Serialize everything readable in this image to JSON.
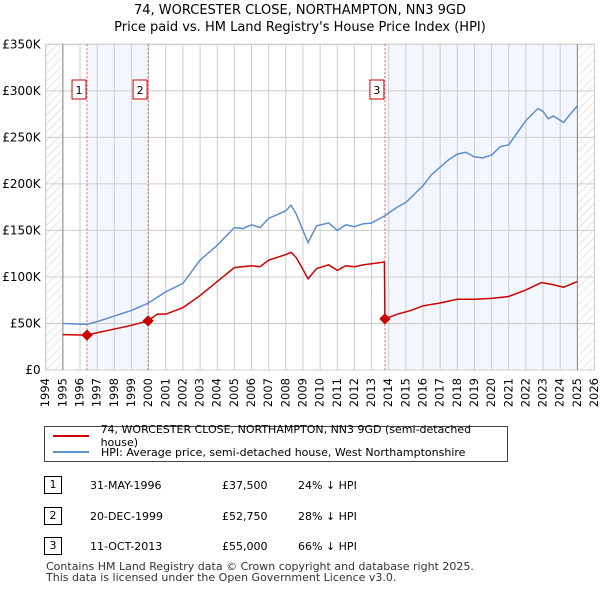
{
  "chart_data": {
    "type": "line",
    "title": "74, WORCESTER CLOSE, NORTHAMPTON, NN3 9GD",
    "subtitle": "Price paid vs. HM Land Registry's House Price Index (HPI)",
    "xlim": [
      1994,
      2026
    ],
    "ylim": [
      0,
      350000
    ],
    "x_ticks": [
      "1994",
      "1995",
      "1996",
      "1997",
      "1998",
      "1999",
      "2000",
      "2001",
      "2002",
      "2003",
      "2004",
      "2005",
      "2006",
      "2007",
      "2008",
      "2009",
      "2010",
      "2011",
      "2012",
      "2013",
      "2014",
      "2015",
      "2016",
      "2017",
      "2018",
      "2019",
      "2020",
      "2021",
      "2022",
      "2023",
      "2024",
      "2025",
      "2026"
    ],
    "y_ticks": [
      {
        "v": 0,
        "l": "£0"
      },
      {
        "v": 50000,
        "l": "£50K"
      },
      {
        "v": 100000,
        "l": "£100K"
      },
      {
        "v": 150000,
        "l": "£150K"
      },
      {
        "v": 200000,
        "l": "£200K"
      },
      {
        "v": 250000,
        "l": "£250K"
      },
      {
        "v": 300000,
        "l": "£300K"
      },
      {
        "v": 350000,
        "l": "£350K"
      }
    ],
    "grid": true,
    "series": [
      {
        "name": "74, WORCESTER CLOSE, NORTHAMPTON, NN3 9GD (semi-detached house)",
        "color": "#cc0000",
        "x": [
          1995,
          1996.41,
          1997,
          1998,
          1999,
          1999.97,
          2000.5,
          2001,
          2002,
          2003,
          2004,
          2005,
          2006,
          2006.5,
          2007,
          2008,
          2008.3,
          2008.6,
          2009,
          2009.3,
          2009.8,
          2010.5,
          2011,
          2011.5,
          2012,
          2012.5,
          2013.75,
          2013.78,
          2014.5,
          2015.3,
          2016,
          2017,
          2018,
          2019,
          2020,
          2021,
          2022,
          2022.9,
          2023.5,
          2024.2,
          2025
        ],
        "y": [
          38000,
          37500,
          40000,
          44000,
          48000,
          52750,
          60000,
          60000,
          67000,
          80000,
          95000,
          110000,
          112000,
          111000,
          118000,
          124000,
          126500,
          121000,
          108000,
          98000,
          109000,
          113000,
          107000,
          112000,
          111000,
          113000,
          116000,
          55000,
          60000,
          64000,
          69000,
          72000,
          76000,
          76000,
          77000,
          79000,
          86000,
          94000,
          92000,
          89000,
          95000
        ]
      },
      {
        "name": "HPI: Average price, semi-detached house, West Northamptonshire",
        "color": "#5b8fd0",
        "x": [
          1995,
          1996.4,
          1997,
          1998,
          1999,
          2000,
          2001,
          2002,
          2003,
          2004,
          2005,
          2005.5,
          2006,
          2006.5,
          2007,
          2008,
          2008.3,
          2008.6,
          2009,
          2009.3,
          2009.8,
          2010.5,
          2011,
          2011.5,
          2012,
          2012.5,
          2013,
          2013.8,
          2014.5,
          2015,
          2015.5,
          2016,
          2016.5,
          2017,
          2017.5,
          2018,
          2018.5,
          2019,
          2019.5,
          2020,
          2020.5,
          2021,
          2021.5,
          2022,
          2022.7,
          2023,
          2023.3,
          2023.6,
          2024.2,
          2024.5,
          2025
        ],
        "y": [
          50000,
          49000,
          52000,
          58000,
          64000,
          72000,
          84000,
          93000,
          118000,
          134000,
          153000,
          152000,
          156000,
          153000,
          163000,
          171000,
          177000,
          168000,
          150000,
          137000,
          155000,
          158000,
          150000,
          156000,
          154000,
          157000,
          158000,
          166000,
          175000,
          180000,
          189000,
          198000,
          210000,
          218000,
          226000,
          232000,
          234000,
          229000,
          228000,
          231000,
          240000,
          242000,
          255000,
          268000,
          281000,
          278000,
          270000,
          273000,
          266000,
          273000,
          284000
        ]
      }
    ],
    "shaded_ranges": [
      [
        1996.41,
        1999.97
      ],
      [
        2013.78,
        2025
      ]
    ],
    "hatched_ranges": [
      [
        1994,
        1995
      ],
      [
        2025,
        2026
      ]
    ],
    "markers": [
      {
        "label": "1",
        "x": 1996.41,
        "y": 37500
      },
      {
        "label": "2",
        "x": 1999.97,
        "y": 52750
      },
      {
        "label": "3",
        "x": 2013.78,
        "y": 55000
      }
    ],
    "legend_placement": "bottom"
  },
  "table": [
    {
      "num": "1",
      "date": "31-MAY-1996",
      "price": "£37,500",
      "hpi": "24% ↓ HPI"
    },
    {
      "num": "2",
      "date": "20-DEC-1999",
      "price": "£52,750",
      "hpi": "28% ↓ HPI"
    },
    {
      "num": "3",
      "date": "11-OCT-2013",
      "price": "£55,000",
      "hpi": "66% ↓ HPI"
    }
  ],
  "footer": {
    "line1": "Contains HM Land Registry data © Crown copyright and database right 2025.",
    "line2": "This data is licensed under the Open Government Licence v3.0."
  }
}
